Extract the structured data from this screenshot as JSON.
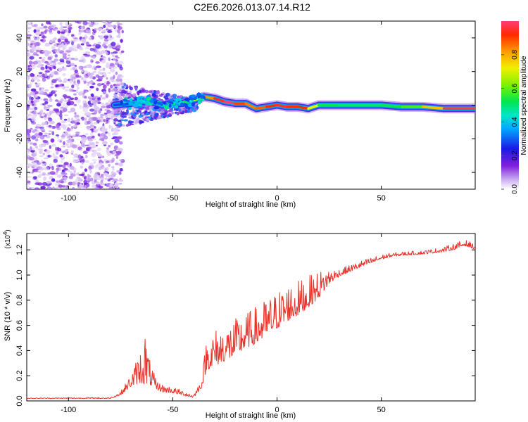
{
  "title": "C2E6.2026.013.07.14.R12",
  "chart_data": [
    {
      "type": "heatmap",
      "name": "spectrogram",
      "xlabel": "Height of straight line (km)",
      "ylabel": "Frequency (Hz)",
      "xlim": [
        -120,
        95
      ],
      "ylim": [
        -50,
        50
      ],
      "xticks": [
        -100,
        -50,
        0,
        50
      ],
      "yticks": [
        -40,
        -20,
        0,
        20,
        40
      ],
      "description_values": {
        "noise_region_km": [
          -120,
          -78
        ],
        "transition_region_km": [
          -78,
          -40
        ],
        "signal_band_center_hz": 0
      },
      "ridge": {
        "x": [
          -78,
          -70,
          -65,
          -60,
          -55,
          -50,
          -45,
          -40,
          -35,
          -30,
          -25,
          -20,
          -15,
          -10,
          -5,
          0,
          5,
          10,
          15,
          20,
          30,
          40,
          50,
          60,
          70,
          80,
          95
        ],
        "freq": [
          0,
          1,
          2,
          2,
          0,
          1,
          1,
          3,
          5,
          4,
          2,
          1,
          1,
          -2,
          -1,
          0,
          -1,
          -1,
          -2,
          0,
          0,
          0,
          0,
          -1,
          -1,
          -2,
          -2
        ],
        "amplitude": [
          0.25,
          0.3,
          0.35,
          0.4,
          0.4,
          0.45,
          0.5,
          0.6,
          0.75,
          0.9,
          1.0,
          1.0,
          0.8,
          0.9,
          0.85,
          1.0,
          0.9,
          0.95,
          0.9,
          0.55,
          0.5,
          0.5,
          0.5,
          0.55,
          0.6,
          0.95,
          1.0
        ]
      }
    },
    {
      "type": "colorbar",
      "name": "colorbar",
      "label": "Normalized spectral amplitude",
      "ylim": [
        0,
        1
      ],
      "ticks": [
        "0.0",
        "0.2",
        "0.4",
        "0.6",
        "0.8"
      ],
      "tick_values": [
        0,
        0.2,
        0.4,
        0.6,
        0.8
      ]
    },
    {
      "type": "line",
      "name": "snr",
      "xlabel": "Height of straight line (km)",
      "ylabel": "SNR (10 * v/v)",
      "multiplier_base": "(x10",
      "multiplier_exp": "4",
      "multiplier_end": ")",
      "xlim": [
        -120,
        95
      ],
      "ylim": [
        0,
        1.33
      ],
      "xticks": [
        -100,
        -50,
        0,
        50
      ],
      "yticks": [
        "0.0",
        "0.2",
        "0.4",
        "0.6",
        "0.8",
        "1.0",
        "1.2"
      ],
      "ytick_values": [
        0,
        0.2,
        0.4,
        0.6,
        0.8,
        1.0,
        1.2
      ],
      "color": "#e8332a",
      "envelope": {
        "x": [
          -120,
          -80,
          -75,
          -70,
          -66,
          -63,
          -61,
          -58,
          -55,
          -50,
          -45,
          -40,
          -36,
          -34,
          -30,
          -25,
          -20,
          -15,
          -10,
          -5,
          0,
          5,
          10,
          15,
          20,
          25,
          30,
          40,
          50,
          55,
          60,
          70,
          80,
          85,
          90,
          95
        ],
        "base": [
          0.02,
          0.02,
          0.05,
          0.13,
          0.18,
          0.2,
          0.16,
          0.1,
          0.08,
          0.07,
          0.05,
          0.03,
          0.12,
          0.28,
          0.32,
          0.36,
          0.4,
          0.46,
          0.5,
          0.56,
          0.62,
          0.68,
          0.72,
          0.78,
          0.85,
          0.95,
          1.0,
          1.07,
          1.13,
          1.15,
          1.16,
          1.17,
          1.19,
          1.21,
          1.24,
          1.21
        ],
        "amp": [
          0.005,
          0.01,
          0.03,
          0.1,
          0.25,
          0.45,
          0.2,
          0.08,
          0.06,
          0.05,
          0.04,
          0.03,
          0.08,
          0.25,
          0.3,
          0.28,
          0.3,
          0.28,
          0.3,
          0.3,
          0.3,
          0.3,
          0.28,
          0.25,
          0.22,
          0.12,
          0.06,
          0.05,
          0.04,
          0.03,
          0.03,
          0.03,
          0.04,
          0.05,
          0.05,
          0.04
        ]
      }
    }
  ]
}
